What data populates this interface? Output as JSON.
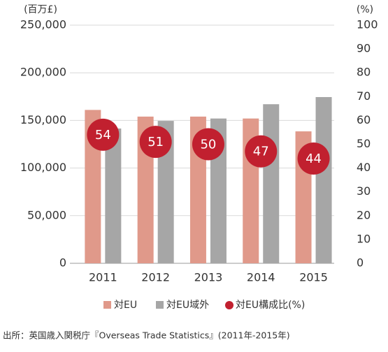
{
  "chart_data": {
    "type": "bar",
    "y_label": "(百万£)",
    "y2_label": "(%)",
    "categories": [
      "2011",
      "2012",
      "2013",
      "2014",
      "2015"
    ],
    "series": [
      {
        "name": "対EU",
        "color": "#e0998a",
        "values": [
          161000,
          154000,
          154000,
          152000,
          138500
        ]
      },
      {
        "name": "対EU域外",
        "color": "#a6a6a6",
        "values": [
          141500,
          149500,
          152000,
          167000,
          174500
        ]
      },
      {
        "name": "対EU構成比(%)",
        "color": "#c1202f",
        "type": "scatter",
        "axis": "y2",
        "values": [
          54,
          51,
          50,
          47,
          44
        ]
      }
    ],
    "ylim": [
      0,
      250000
    ],
    "yticks": [
      0,
      {
        "value": 50000,
        "label": "50,000"
      },
      {
        "value": 100000,
        "label": "100,000"
      },
      {
        "value": 150000,
        "label": "150,000"
      },
      {
        "value": 200000,
        "label": "200,000"
      },
      {
        "value": 250000,
        "label": "250,000"
      }
    ],
    "y2lim": [
      0,
      100
    ],
    "y2ticks": [
      0,
      10,
      20,
      30,
      40,
      50,
      60,
      70,
      80,
      90,
      100
    ],
    "grid": true,
    "source": "出所：英国歳入関税庁『Overseas Trade Statistics』(2011年-2015年)"
  }
}
